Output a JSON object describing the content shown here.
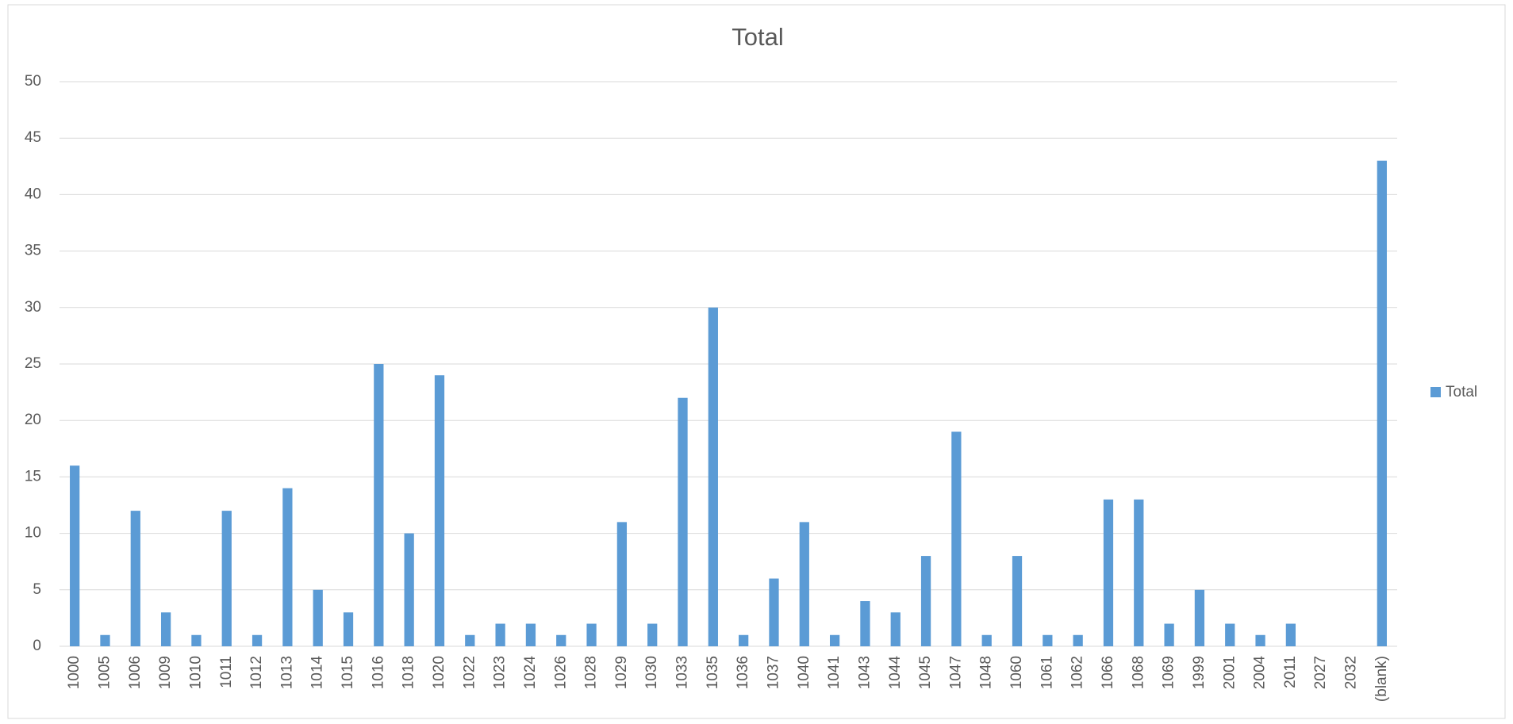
{
  "chart_data": {
    "type": "bar",
    "title": "Total",
    "categories": [
      "1000",
      "1005",
      "1006",
      "1009",
      "1010",
      "1011",
      "1012",
      "1013",
      "1014",
      "1015",
      "1016",
      "1018",
      "1020",
      "1022",
      "1023",
      "1024",
      "1026",
      "1028",
      "1029",
      "1030",
      "1033",
      "1035",
      "1036",
      "1037",
      "1040",
      "1041",
      "1043",
      "1044",
      "1045",
      "1047",
      "1048",
      "1060",
      "1061",
      "1062",
      "1066",
      "1068",
      "1069",
      "1999",
      "2001",
      "2004",
      "2011",
      "2027",
      "2032",
      "(blank)"
    ],
    "series": [
      {
        "name": "Total",
        "color": "#5b9bd5",
        "values": [
          16,
          1,
          12,
          3,
          1,
          12,
          1,
          14,
          5,
          3,
          25,
          10,
          24,
          1,
          2,
          2,
          1,
          2,
          11,
          2,
          22,
          30,
          1,
          6,
          11,
          1,
          4,
          3,
          8,
          19,
          1,
          8,
          1,
          1,
          13,
          13,
          2,
          5,
          2,
          1,
          2,
          null,
          null,
          43
        ]
      }
    ],
    "ylim": [
      0,
      50
    ],
    "yticks": [
      0,
      5,
      10,
      15,
      20,
      25,
      30,
      35,
      40,
      45,
      50
    ],
    "grid": true,
    "legend": "right"
  }
}
